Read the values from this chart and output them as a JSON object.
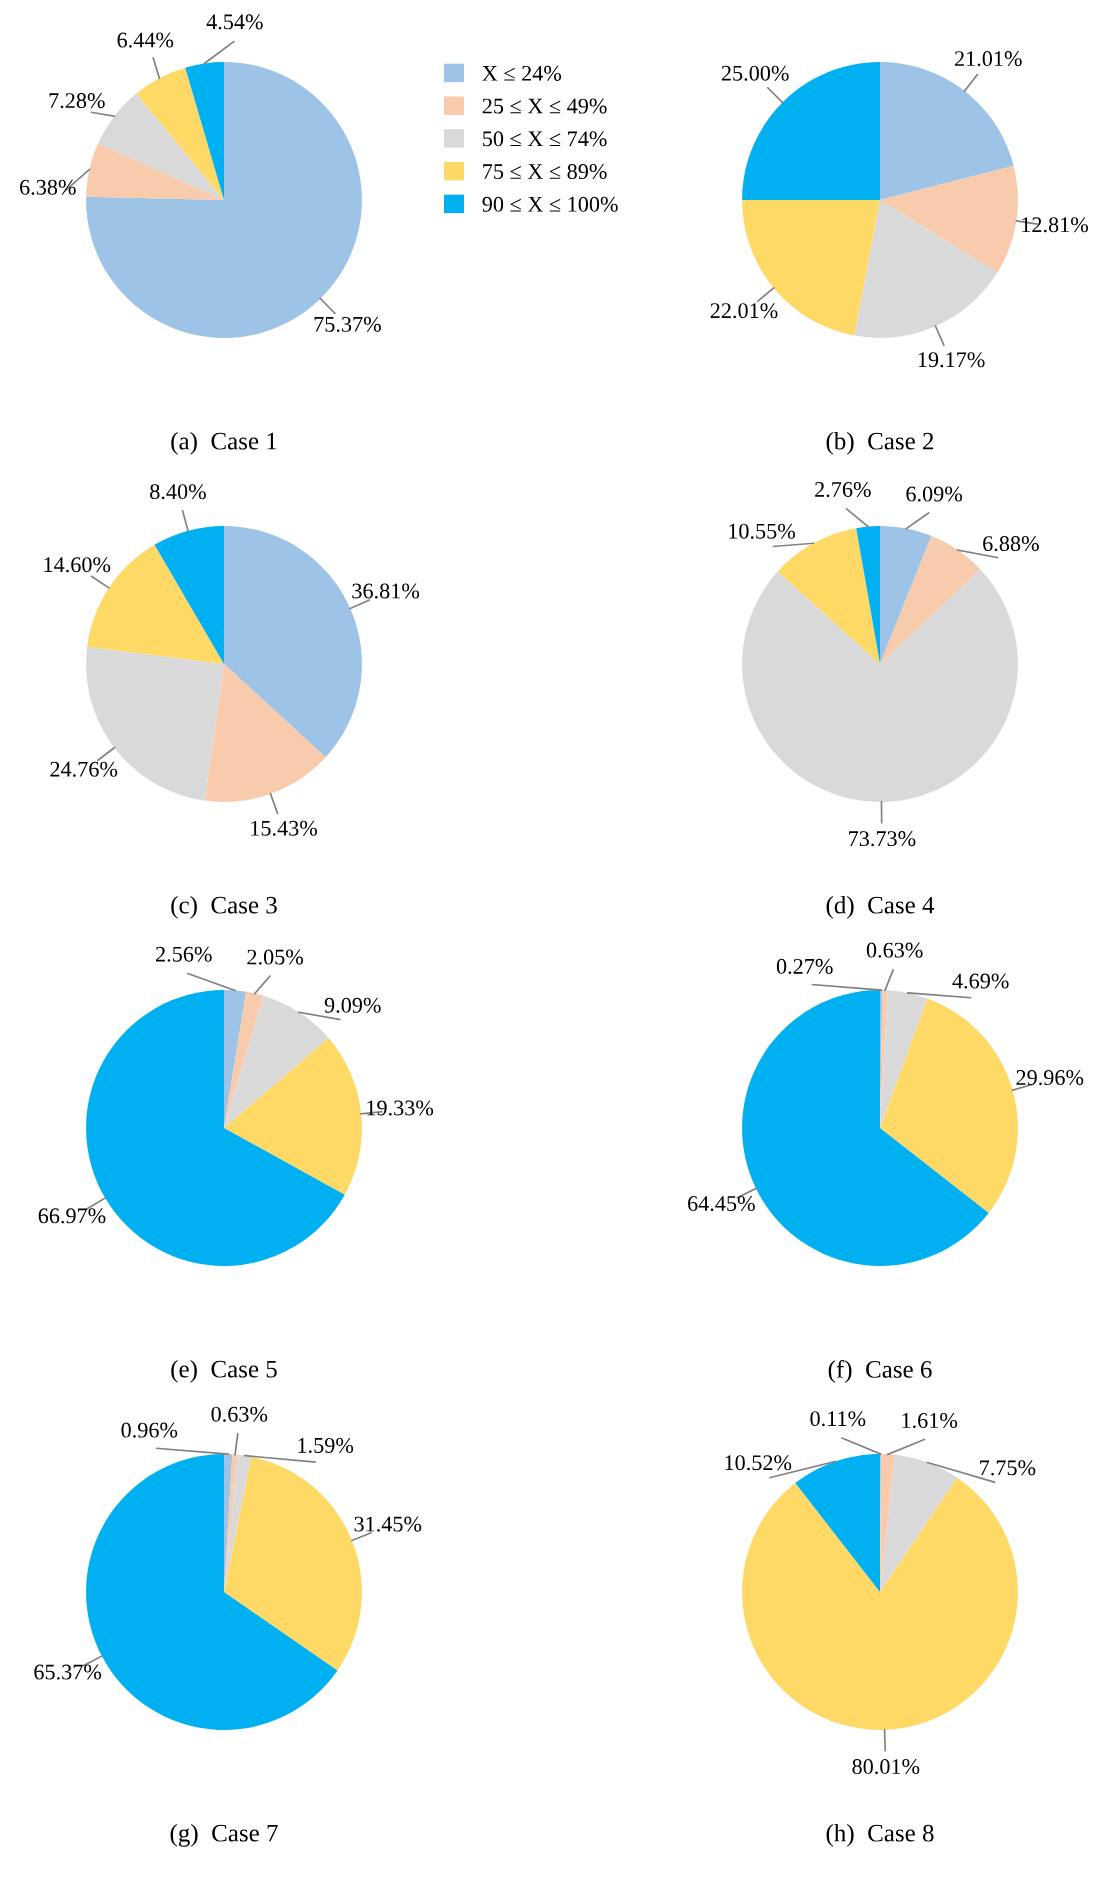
{
  "chart_data": [
    {
      "type": "pie",
      "title": "(a)  Case 1",
      "legend": "right",
      "categories": [
        "X ≤ 24%",
        "25 ≤ X ≤ 49%",
        "50 ≤ X ≤ 74%",
        "75 ≤ X ≤ 89%",
        "90 ≤ X ≤ 100%"
      ],
      "values": [
        75.37,
        6.38,
        7.28,
        6.44,
        4.54
      ],
      "value_labels": [
        "75.37%",
        "6.38%",
        "7.28%",
        "6.44%",
        "4.54%"
      ],
      "colors": [
        "#9dc3e6",
        "#f8cbad",
        "#d9d9d9",
        "#ffd966",
        "#00b0f0"
      ]
    },
    {
      "type": "pie",
      "title": "(b)  Case 2",
      "categories": [
        null,
        null,
        null,
        null,
        null
      ],
      "values": [
        21.01,
        12.81,
        19.17,
        22.01,
        25.0
      ],
      "value_labels": [
        "21.01%",
        "12.81%",
        "19.17%",
        "22.01%",
        "25.00%"
      ],
      "colors": [
        "#9dc3e6",
        "#f8cbad",
        "#d9d9d9",
        "#ffd966",
        "#00b0f0"
      ]
    },
    {
      "type": "pie",
      "title": "(c)  Case 3",
      "categories": [
        null,
        null,
        null,
        null,
        null
      ],
      "values": [
        36.81,
        15.43,
        24.76,
        14.6,
        8.4
      ],
      "value_labels": [
        "36.81%",
        "15.43%",
        "24.76%",
        "14.60%",
        "8.40%"
      ],
      "colors": [
        "#9dc3e6",
        "#f8cbad",
        "#d9d9d9",
        "#ffd966",
        "#00b0f0"
      ]
    },
    {
      "type": "pie",
      "title": "(d)  Case 4",
      "categories": [
        null,
        null,
        null,
        null,
        null
      ],
      "values": [
        6.09,
        6.88,
        73.73,
        10.55,
        2.76
      ],
      "value_labels": [
        "6.09%",
        "6.88%",
        "73.73%",
        "10.55%",
        "2.76%"
      ],
      "colors": [
        "#9dc3e6",
        "#f8cbad",
        "#d9d9d9",
        "#ffd966",
        "#00b0f0"
      ]
    },
    {
      "type": "pie",
      "title": "(e)  Case 5",
      "categories": [
        null,
        null,
        null,
        null,
        null
      ],
      "values": [
        2.56,
        2.05,
        9.09,
        19.33,
        66.97
      ],
      "value_labels": [
        "2.56%",
        "2.05%",
        "9.09%",
        "19.33%",
        "66.97%"
      ],
      "colors": [
        "#9dc3e6",
        "#f8cbad",
        "#d9d9d9",
        "#ffd966",
        "#00b0f0"
      ]
    },
    {
      "type": "pie",
      "title": "(f)  Case 6",
      "categories": [
        null,
        null,
        null,
        null,
        null
      ],
      "values": [
        0.27,
        0.63,
        4.69,
        29.96,
        64.45
      ],
      "value_labels": [
        "0.27%",
        "0.63%",
        "4.69%",
        "29.96%",
        "64.45%"
      ],
      "colors": [
        "#9dc3e6",
        "#f8cbad",
        "#d9d9d9",
        "#ffd966",
        "#00b0f0"
      ]
    },
    {
      "type": "pie",
      "title": "(g)  Case 7",
      "categories": [
        null,
        null,
        null,
        null,
        null
      ],
      "values": [
        0.96,
        0.63,
        1.59,
        31.45,
        65.37
      ],
      "value_labels": [
        "0.96%",
        "0.63%",
        "1.59%",
        "31.45%",
        "65.37%"
      ],
      "colors": [
        "#9dc3e6",
        "#f8cbad",
        "#d9d9d9",
        "#ffd966",
        "#00b0f0"
      ]
    },
    {
      "type": "pie",
      "title": "(h)  Case 8",
      "categories": [
        null,
        null,
        null,
        null,
        null
      ],
      "values": [
        0.11,
        1.61,
        7.75,
        80.01,
        10.52
      ],
      "value_labels": [
        "0.11%",
        "1.61%",
        "7.75%",
        "80.01%",
        "10.52%"
      ],
      "colors": [
        "#9dc3e6",
        "#f8cbad",
        "#d9d9d9",
        "#ffd966",
        "#00b0f0"
      ]
    }
  ]
}
